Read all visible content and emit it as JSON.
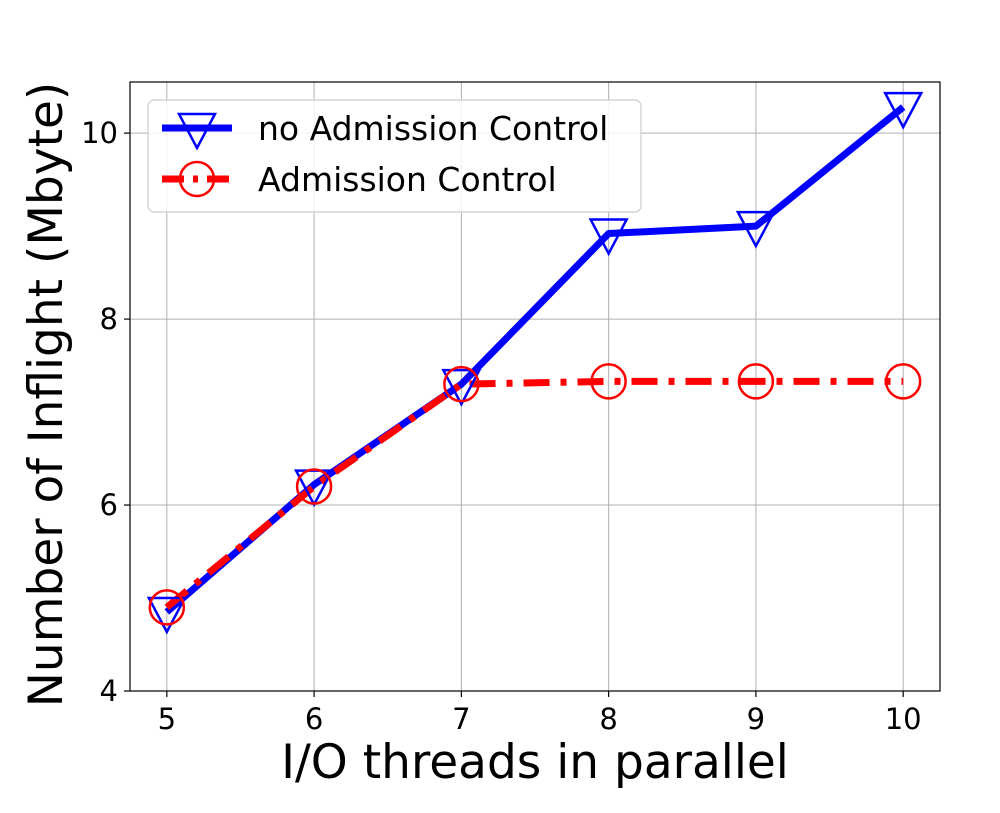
{
  "chart_data": {
    "type": "line",
    "title": "",
    "xlabel": "I/O threads in parallel",
    "ylabel": "Number of Inflight (Mbyte)",
    "x": [
      5,
      6,
      7,
      8,
      9,
      10
    ],
    "xticks": [
      "5",
      "6",
      "7",
      "8",
      "9",
      "10"
    ],
    "yticks": [
      "4",
      "6",
      "8",
      "10"
    ],
    "ytick_values": [
      4,
      6,
      8,
      10
    ],
    "xlim": [
      4.75,
      10.25
    ],
    "ylim": [
      4.0,
      10.55
    ],
    "grid": true,
    "legend_position": "top-left",
    "series": [
      {
        "name": "no Admission Control",
        "values": [
          4.85,
          6.22,
          7.3,
          8.92,
          9.0,
          10.28
        ],
        "color": "#0000ff",
        "line_style": "solid",
        "marker": "triangle-down"
      },
      {
        "name": "Admission Control",
        "values": [
          4.9,
          6.2,
          7.3,
          7.33,
          7.33,
          7.33
        ],
        "color": "#ff0000",
        "line_style": "dash-dot",
        "marker": "circle"
      }
    ]
  }
}
